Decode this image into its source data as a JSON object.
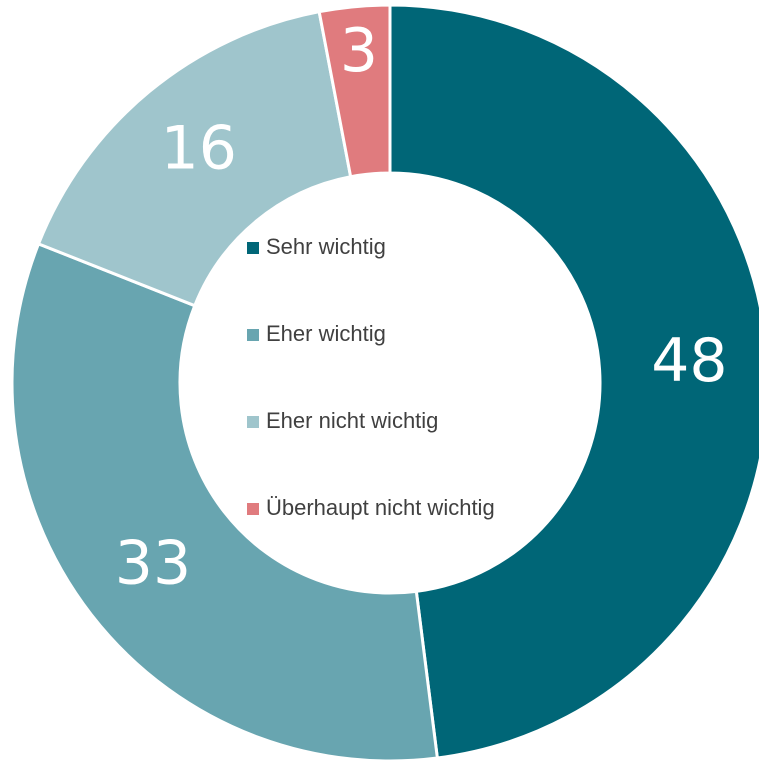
{
  "chart_data": {
    "type": "donut",
    "categories": [
      "Sehr wichtig",
      "Eher wichtig",
      "Eher nicht wichtig",
      "Überhaupt nicht wichtig"
    ],
    "values": [
      48,
      33,
      16,
      3
    ],
    "colors": [
      "#006677",
      "#68a5b0",
      "#9fc5cc",
      "#e07b7e"
    ],
    "legend": "center"
  }
}
